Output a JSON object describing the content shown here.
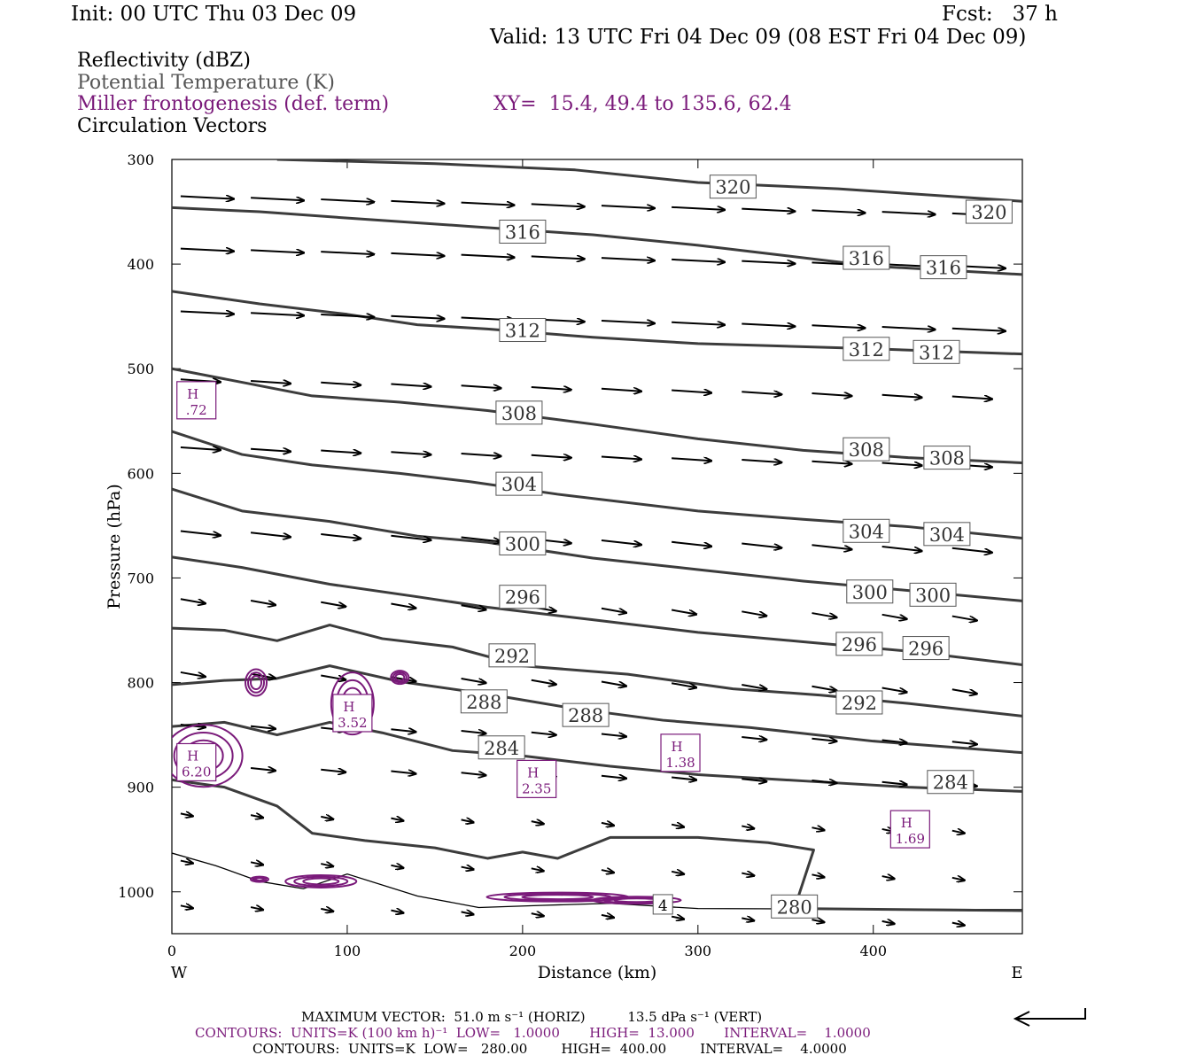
{
  "header": {
    "init": "Init: 00 UTC Thu 03 Dec 09",
    "fcst": "Fcst:   37 h",
    "valid": "Valid: 13 UTC Fri 04 Dec 09 (08 EST Fri 04 Dec 09)"
  },
  "legend": {
    "line1": "Reflectivity (dBZ)",
    "line2": "Potential Temperature (K)",
    "line3": "Miller frontogenesis (def. term)",
    "xy": "XY=  15.4, 49.4 to 135.6, 62.4",
    "line4": "Circulation Vectors"
  },
  "colors": {
    "theta": "#3c3c3c",
    "fronto": "#7a1a7a",
    "vectors": "#000000",
    "reflectivity": "#000000"
  },
  "footer": {
    "max_vector": "MAXIMUM VECTOR:  51.0 m s⁻¹ (HORIZ)          13.5 dPa s⁻¹ (VERT)",
    "contours_fronto": "CONTOURS:  UNITS=K (100 km h)⁻¹  LOW=   1.0000       HIGH=  13.000       INTERVAL=    1.0000",
    "contours_theta": "CONTOURS:  UNITS=K  LOW=   280.00        HIGH=  400.00        INTERVAL=    4.0000"
  },
  "chart_data": {
    "type": "cross-section",
    "xlabel": "Distance (km)",
    "ylabel": "Pressure (hPa)",
    "xlim": [
      0,
      485
    ],
    "ylim": [
      1040,
      300
    ],
    "y_reversed": true,
    "xticks": [
      0,
      100,
      200,
      300,
      400
    ],
    "yticks": [
      300,
      400,
      500,
      600,
      700,
      800,
      900,
      1000
    ],
    "x_end_labels": {
      "left": "W",
      "right": "E"
    },
    "theta_contours": [
      {
        "value": 320,
        "points": [
          [
            60,
            300
          ],
          [
            150,
            304
          ],
          [
            230,
            310
          ],
          [
            300,
            322
          ],
          [
            380,
            328
          ],
          [
            450,
            336
          ],
          [
            485,
            340
          ]
        ],
        "labels": [
          [
            320,
            326
          ],
          [
            466,
            350
          ]
        ]
      },
      {
        "value": 316,
        "points": [
          [
            0,
            346
          ],
          [
            50,
            350
          ],
          [
            100,
            356
          ],
          [
            170,
            364
          ],
          [
            240,
            372
          ],
          [
            300,
            382
          ],
          [
            350,
            392
          ],
          [
            400,
            402
          ],
          [
            485,
            410
          ]
        ],
        "labels": [
          [
            200,
            369
          ],
          [
            396,
            394
          ],
          [
            440,
            403
          ]
        ]
      },
      {
        "value": 312,
        "points": [
          [
            0,
            426
          ],
          [
            50,
            438
          ],
          [
            100,
            448
          ],
          [
            140,
            458
          ],
          [
            180,
            462
          ],
          [
            240,
            470
          ],
          [
            300,
            476
          ],
          [
            400,
            481
          ],
          [
            485,
            486
          ]
        ],
        "labels": [
          [
            200,
            463
          ],
          [
            396,
            481
          ],
          [
            436,
            484
          ]
        ]
      },
      {
        "value": 308,
        "points": [
          [
            0,
            500
          ],
          [
            40,
            513
          ],
          [
            80,
            526
          ],
          [
            130,
            532
          ],
          [
            180,
            540
          ],
          [
            240,
            553
          ],
          [
            300,
            567
          ],
          [
            360,
            578
          ],
          [
            420,
            585
          ],
          [
            485,
            590
          ]
        ],
        "labels": [
          [
            198,
            542
          ],
          [
            396,
            577
          ],
          [
            442,
            585
          ]
        ]
      },
      {
        "value": 304,
        "points": [
          [
            0,
            560
          ],
          [
            40,
            582
          ],
          [
            80,
            592
          ],
          [
            130,
            600
          ],
          [
            170,
            608
          ],
          [
            220,
            620
          ],
          [
            300,
            636
          ],
          [
            360,
            644
          ],
          [
            420,
            651
          ],
          [
            485,
            662
          ]
        ],
        "labels": [
          [
            198,
            610
          ],
          [
            396,
            655
          ],
          [
            442,
            658
          ]
        ]
      },
      {
        "value": 300,
        "points": [
          [
            0,
            615
          ],
          [
            40,
            636
          ],
          [
            90,
            646
          ],
          [
            140,
            660
          ],
          [
            180,
            666
          ],
          [
            240,
            681
          ],
          [
            300,
            692
          ],
          [
            360,
            703
          ],
          [
            420,
            712
          ],
          [
            485,
            722
          ]
        ],
        "labels": [
          [
            200,
            667
          ],
          [
            398,
            713
          ],
          [
            434,
            716
          ]
        ]
      },
      {
        "value": 296,
        "points": [
          [
            0,
            680
          ],
          [
            40,
            690
          ],
          [
            90,
            706
          ],
          [
            140,
            718
          ],
          [
            180,
            728
          ],
          [
            240,
            740
          ],
          [
            300,
            752
          ],
          [
            360,
            761
          ],
          [
            420,
            770
          ],
          [
            485,
            783
          ]
        ],
        "labels": [
          [
            200,
            718
          ],
          [
            392,
            763
          ],
          [
            430,
            767
          ]
        ]
      },
      {
        "value": 292,
        "points": [
          [
            0,
            748
          ],
          [
            30,
            750
          ],
          [
            60,
            760
          ],
          [
            90,
            745
          ],
          [
            120,
            758
          ],
          [
            160,
            766
          ],
          [
            200,
            784
          ],
          [
            260,
            792
          ],
          [
            320,
            806
          ],
          [
            370,
            812
          ],
          [
            420,
            820
          ],
          [
            485,
            832
          ]
        ],
        "labels": [
          [
            194,
            774
          ],
          [
            392,
            819
          ]
        ]
      },
      {
        "value": 288,
        "points": [
          [
            0,
            802
          ],
          [
            30,
            798
          ],
          [
            60,
            796
          ],
          [
            90,
            784
          ],
          [
            130,
            799
          ],
          [
            180,
            811
          ],
          [
            230,
            825
          ],
          [
            280,
            836
          ],
          [
            330,
            843
          ],
          [
            400,
            856
          ],
          [
            485,
            867
          ]
        ],
        "labels": [
          [
            178,
            818
          ],
          [
            236,
            831
          ]
        ]
      },
      {
        "value": 284,
        "points": [
          [
            0,
            842
          ],
          [
            30,
            838
          ],
          [
            60,
            850
          ],
          [
            90,
            838
          ],
          [
            120,
            848
          ],
          [
            160,
            865
          ],
          [
            200,
            870
          ],
          [
            250,
            880
          ],
          [
            300,
            888
          ],
          [
            360,
            894
          ],
          [
            420,
            900
          ],
          [
            485,
            904
          ]
        ],
        "labels": [
          [
            188,
            862
          ],
          [
            444,
            895
          ]
        ]
      },
      {
        "value": 280,
        "points": [
          [
            0,
            893
          ],
          [
            30,
            900
          ],
          [
            60,
            918
          ],
          [
            80,
            944
          ],
          [
            110,
            951
          ],
          [
            150,
            958
          ],
          [
            180,
            968
          ],
          [
            200,
            962
          ],
          [
            220,
            968
          ],
          [
            250,
            948
          ],
          [
            300,
            948
          ],
          [
            340,
            953
          ],
          [
            366,
            960
          ],
          [
            355,
            1016
          ],
          [
            485,
            1018
          ]
        ],
        "labels": [
          [
            355,
            1014
          ]
        ]
      }
    ],
    "frontogenesis_maxima": [
      {
        "label": "H",
        "value": ".72",
        "x": 14,
        "p": 531
      },
      {
        "label": "H",
        "value": "6.20",
        "x": 14,
        "p": 877
      },
      {
        "label": "H",
        "value": "3.52",
        "x": 103,
        "p": 830
      },
      {
        "label": "H",
        "value": "2.35",
        "x": 208,
        "p": 893
      },
      {
        "label": "H",
        "value": "1.38",
        "x": 290,
        "p": 868
      },
      {
        "label": "H",
        "value": "1.69",
        "x": 421,
        "p": 941
      }
    ],
    "reflectivity_label": {
      "value": "4",
      "x": 280,
      "p": 1012
    },
    "terrain": [
      [
        0,
        963
      ],
      [
        25,
        975
      ],
      [
        50,
        990
      ],
      [
        75,
        997
      ],
      [
        100,
        983
      ],
      [
        140,
        1004
      ],
      [
        175,
        1015
      ],
      [
        210,
        1013
      ],
      [
        250,
        1011
      ],
      [
        300,
        1016
      ],
      [
        485,
        1017
      ]
    ]
  }
}
